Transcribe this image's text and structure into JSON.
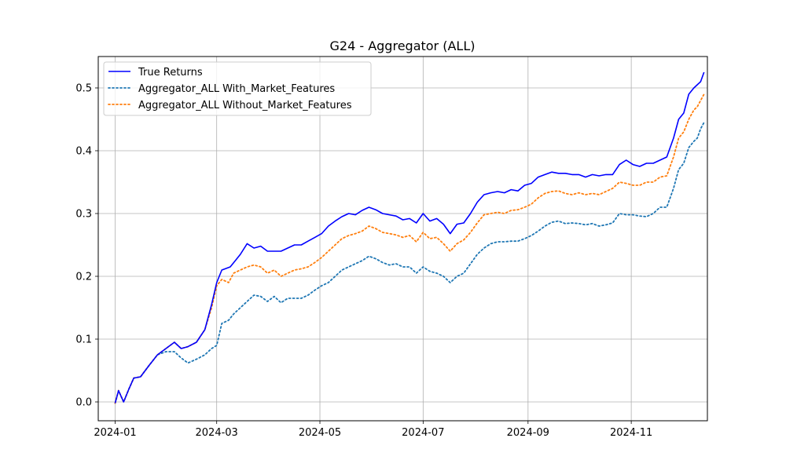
{
  "chart_data": {
    "type": "line",
    "title": "G24 - Aggregator (ALL)",
    "xlabel": "",
    "ylabel": "",
    "xlim": [
      -10,
      350
    ],
    "ylim": [
      -0.03,
      0.55
    ],
    "grid": true,
    "legend_position": "upper-left",
    "x_ticks": [
      {
        "value": 0,
        "label": "2024-01"
      },
      {
        "value": 60,
        "label": "2024-03"
      },
      {
        "value": 121,
        "label": "2024-05"
      },
      {
        "value": 182,
        "label": "2024-07"
      },
      {
        "value": 244,
        "label": "2024-09"
      },
      {
        "value": 305,
        "label": "2024-11"
      }
    ],
    "y_ticks": [
      {
        "value": 0.0,
        "label": "0.0"
      },
      {
        "value": 0.1,
        "label": "0.1"
      },
      {
        "value": 0.2,
        "label": "0.2"
      },
      {
        "value": 0.3,
        "label": "0.3"
      },
      {
        "value": 0.4,
        "label": "0.4"
      },
      {
        "value": 0.5,
        "label": "0.5"
      }
    ],
    "series": [
      {
        "name": "True Returns",
        "style": "solid",
        "color": "#0000ff",
        "points": [
          [
            0,
            -0.002
          ],
          [
            2,
            0.018
          ],
          [
            5,
            0.0
          ],
          [
            8,
            0.02
          ],
          [
            11,
            0.038
          ],
          [
            15,
            0.04
          ],
          [
            20,
            0.058
          ],
          [
            25,
            0.075
          ],
          [
            30,
            0.085
          ],
          [
            35,
            0.095
          ],
          [
            39,
            0.085
          ],
          [
            43,
            0.088
          ],
          [
            48,
            0.095
          ],
          [
            53,
            0.115
          ],
          [
            57,
            0.155
          ],
          [
            60,
            0.19
          ],
          [
            63,
            0.21
          ],
          [
            68,
            0.215
          ],
          [
            71,
            0.225
          ],
          [
            74,
            0.235
          ],
          [
            78,
            0.252
          ],
          [
            82,
            0.245
          ],
          [
            86,
            0.248
          ],
          [
            90,
            0.24
          ],
          [
            94,
            0.24
          ],
          [
            98,
            0.24
          ],
          [
            102,
            0.245
          ],
          [
            106,
            0.25
          ],
          [
            110,
            0.25
          ],
          [
            114,
            0.256
          ],
          [
            118,
            0.262
          ],
          [
            122,
            0.268
          ],
          [
            126,
            0.28
          ],
          [
            130,
            0.288
          ],
          [
            134,
            0.295
          ],
          [
            138,
            0.3
          ],
          [
            142,
            0.298
          ],
          [
            146,
            0.305
          ],
          [
            150,
            0.31
          ],
          [
            154,
            0.306
          ],
          [
            158,
            0.3
          ],
          [
            162,
            0.298
          ],
          [
            166,
            0.296
          ],
          [
            170,
            0.29
          ],
          [
            174,
            0.292
          ],
          [
            178,
            0.285
          ],
          [
            182,
            0.3
          ],
          [
            186,
            0.288
          ],
          [
            190,
            0.292
          ],
          [
            194,
            0.283
          ],
          [
            198,
            0.268
          ],
          [
            202,
            0.283
          ],
          [
            206,
            0.285
          ],
          [
            210,
            0.3
          ],
          [
            214,
            0.318
          ],
          [
            218,
            0.33
          ],
          [
            222,
            0.333
          ],
          [
            226,
            0.335
          ],
          [
            230,
            0.333
          ],
          [
            234,
            0.338
          ],
          [
            238,
            0.336
          ],
          [
            242,
            0.345
          ],
          [
            246,
            0.348
          ],
          [
            250,
            0.358
          ],
          [
            254,
            0.362
          ],
          [
            258,
            0.366
          ],
          [
            262,
            0.364
          ],
          [
            266,
            0.364
          ],
          [
            270,
            0.362
          ],
          [
            274,
            0.362
          ],
          [
            278,
            0.358
          ],
          [
            282,
            0.362
          ],
          [
            286,
            0.36
          ],
          [
            290,
            0.362
          ],
          [
            294,
            0.362
          ],
          [
            298,
            0.378
          ],
          [
            302,
            0.385
          ],
          [
            306,
            0.378
          ],
          [
            310,
            0.375
          ],
          [
            314,
            0.38
          ],
          [
            318,
            0.38
          ],
          [
            322,
            0.385
          ],
          [
            326,
            0.39
          ],
          [
            330,
            0.42
          ],
          [
            333,
            0.45
          ],
          [
            336,
            0.46
          ],
          [
            339,
            0.49
          ],
          [
            342,
            0.5
          ],
          [
            344,
            0.505
          ],
          [
            346,
            0.51
          ],
          [
            348,
            0.525
          ]
        ]
      },
      {
        "name": "Aggregator_ALL With_Market_Features",
        "style": "dotted",
        "color": "#1f77b4",
        "points": [
          [
            0,
            -0.002
          ],
          [
            2,
            0.018
          ],
          [
            5,
            0.0
          ],
          [
            8,
            0.02
          ],
          [
            11,
            0.038
          ],
          [
            15,
            0.04
          ],
          [
            20,
            0.058
          ],
          [
            25,
            0.075
          ],
          [
            30,
            0.08
          ],
          [
            35,
            0.08
          ],
          [
            39,
            0.07
          ],
          [
            43,
            0.062
          ],
          [
            48,
            0.068
          ],
          [
            53,
            0.075
          ],
          [
            57,
            0.085
          ],
          [
            60,
            0.09
          ],
          [
            63,
            0.125
          ],
          [
            67,
            0.13
          ],
          [
            70,
            0.14
          ],
          [
            74,
            0.15
          ],
          [
            78,
            0.16
          ],
          [
            82,
            0.17
          ],
          [
            86,
            0.168
          ],
          [
            90,
            0.16
          ],
          [
            94,
            0.168
          ],
          [
            98,
            0.158
          ],
          [
            102,
            0.165
          ],
          [
            106,
            0.165
          ],
          [
            110,
            0.165
          ],
          [
            114,
            0.17
          ],
          [
            118,
            0.178
          ],
          [
            122,
            0.185
          ],
          [
            126,
            0.19
          ],
          [
            130,
            0.2
          ],
          [
            134,
            0.21
          ],
          [
            138,
            0.215
          ],
          [
            142,
            0.22
          ],
          [
            146,
            0.225
          ],
          [
            150,
            0.232
          ],
          [
            154,
            0.228
          ],
          [
            158,
            0.222
          ],
          [
            162,
            0.218
          ],
          [
            166,
            0.22
          ],
          [
            170,
            0.215
          ],
          [
            174,
            0.215
          ],
          [
            178,
            0.205
          ],
          [
            182,
            0.215
          ],
          [
            186,
            0.208
          ],
          [
            190,
            0.205
          ],
          [
            194,
            0.2
          ],
          [
            198,
            0.19
          ],
          [
            202,
            0.2
          ],
          [
            206,
            0.205
          ],
          [
            210,
            0.22
          ],
          [
            214,
            0.235
          ],
          [
            218,
            0.245
          ],
          [
            222,
            0.252
          ],
          [
            226,
            0.255
          ],
          [
            230,
            0.255
          ],
          [
            234,
            0.256
          ],
          [
            238,
            0.256
          ],
          [
            242,
            0.26
          ],
          [
            246,
            0.265
          ],
          [
            250,
            0.272
          ],
          [
            254,
            0.28
          ],
          [
            258,
            0.286
          ],
          [
            262,
            0.288
          ],
          [
            266,
            0.284
          ],
          [
            270,
            0.285
          ],
          [
            274,
            0.284
          ],
          [
            278,
            0.282
          ],
          [
            282,
            0.284
          ],
          [
            286,
            0.28
          ],
          [
            290,
            0.282
          ],
          [
            294,
            0.285
          ],
          [
            298,
            0.3
          ],
          [
            302,
            0.298
          ],
          [
            306,
            0.298
          ],
          [
            310,
            0.296
          ],
          [
            314,
            0.295
          ],
          [
            318,
            0.3
          ],
          [
            322,
            0.31
          ],
          [
            326,
            0.31
          ],
          [
            330,
            0.34
          ],
          [
            333,
            0.37
          ],
          [
            336,
            0.38
          ],
          [
            339,
            0.405
          ],
          [
            342,
            0.415
          ],
          [
            344,
            0.42
          ],
          [
            346,
            0.435
          ],
          [
            348,
            0.445
          ]
        ]
      },
      {
        "name": "Aggregator_ALL Without_Market_Features",
        "style": "dotted",
        "color": "#ff7f0e",
        "points": [
          [
            0,
            -0.002
          ],
          [
            2,
            0.018
          ],
          [
            5,
            0.0
          ],
          [
            8,
            0.02
          ],
          [
            11,
            0.038
          ],
          [
            15,
            0.04
          ],
          [
            20,
            0.058
          ],
          [
            25,
            0.075
          ],
          [
            30,
            0.085
          ],
          [
            35,
            0.095
          ],
          [
            39,
            0.085
          ],
          [
            43,
            0.088
          ],
          [
            48,
            0.095
          ],
          [
            53,
            0.115
          ],
          [
            57,
            0.15
          ],
          [
            60,
            0.185
          ],
          [
            63,
            0.195
          ],
          [
            67,
            0.19
          ],
          [
            70,
            0.205
          ],
          [
            74,
            0.21
          ],
          [
            78,
            0.215
          ],
          [
            82,
            0.218
          ],
          [
            86,
            0.215
          ],
          [
            90,
            0.205
          ],
          [
            94,
            0.21
          ],
          [
            98,
            0.2
          ],
          [
            102,
            0.205
          ],
          [
            106,
            0.21
          ],
          [
            110,
            0.212
          ],
          [
            114,
            0.215
          ],
          [
            118,
            0.222
          ],
          [
            122,
            0.23
          ],
          [
            126,
            0.24
          ],
          [
            130,
            0.25
          ],
          [
            134,
            0.26
          ],
          [
            138,
            0.265
          ],
          [
            142,
            0.268
          ],
          [
            146,
            0.272
          ],
          [
            150,
            0.28
          ],
          [
            154,
            0.276
          ],
          [
            158,
            0.27
          ],
          [
            162,
            0.268
          ],
          [
            166,
            0.266
          ],
          [
            170,
            0.262
          ],
          [
            174,
            0.265
          ],
          [
            178,
            0.255
          ],
          [
            182,
            0.27
          ],
          [
            186,
            0.26
          ],
          [
            190,
            0.262
          ],
          [
            194,
            0.252
          ],
          [
            198,
            0.24
          ],
          [
            202,
            0.252
          ],
          [
            206,
            0.258
          ],
          [
            210,
            0.27
          ],
          [
            214,
            0.285
          ],
          [
            218,
            0.298
          ],
          [
            222,
            0.3
          ],
          [
            226,
            0.302
          ],
          [
            230,
            0.3
          ],
          [
            234,
            0.305
          ],
          [
            238,
            0.306
          ],
          [
            242,
            0.31
          ],
          [
            246,
            0.315
          ],
          [
            250,
            0.325
          ],
          [
            254,
            0.332
          ],
          [
            258,
            0.335
          ],
          [
            262,
            0.336
          ],
          [
            266,
            0.332
          ],
          [
            270,
            0.33
          ],
          [
            274,
            0.333
          ],
          [
            278,
            0.33
          ],
          [
            282,
            0.332
          ],
          [
            286,
            0.33
          ],
          [
            290,
            0.335
          ],
          [
            294,
            0.34
          ],
          [
            298,
            0.35
          ],
          [
            302,
            0.348
          ],
          [
            306,
            0.345
          ],
          [
            310,
            0.345
          ],
          [
            314,
            0.35
          ],
          [
            318,
            0.35
          ],
          [
            322,
            0.358
          ],
          [
            326,
            0.36
          ],
          [
            330,
            0.39
          ],
          [
            333,
            0.42
          ],
          [
            336,
            0.43
          ],
          [
            339,
            0.45
          ],
          [
            342,
            0.465
          ],
          [
            344,
            0.47
          ],
          [
            346,
            0.48
          ],
          [
            348,
            0.49
          ]
        ]
      }
    ]
  }
}
